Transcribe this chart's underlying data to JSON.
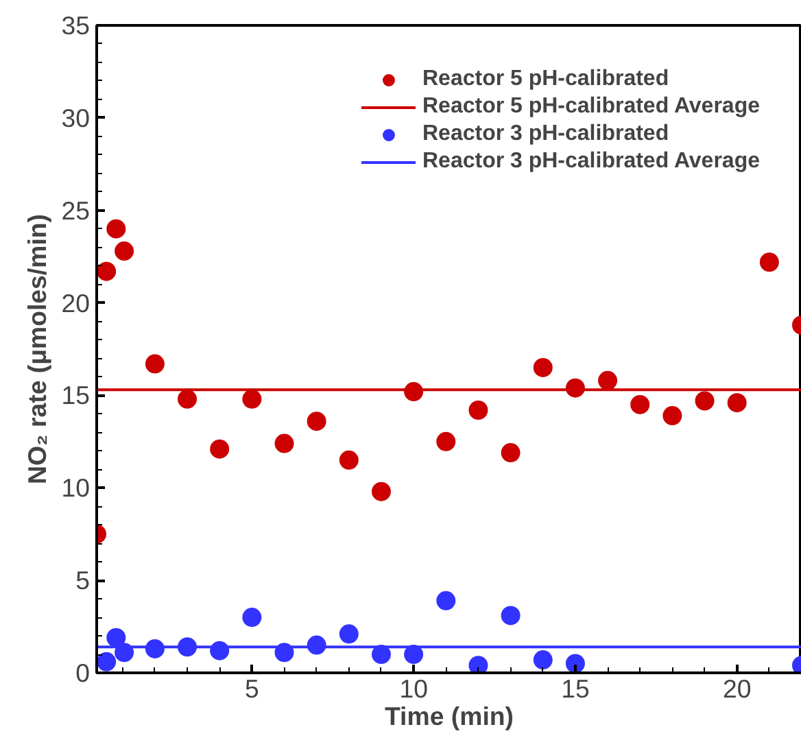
{
  "chart_data": {
    "type": "scatter",
    "xlabel": "Time (min)",
    "ylabel": "NO₂ rate (μmoles/min)",
    "xlim": [
      0.2,
      22
    ],
    "ylim": [
      0,
      35
    ],
    "xticks": [
      5,
      10,
      15,
      20
    ],
    "yticks": [
      0,
      5,
      10,
      15,
      20,
      25,
      30,
      35
    ],
    "grid": false,
    "legend": "top right",
    "marker": "circle",
    "series": [
      {
        "name": "Reactor 5 pH-calibrated",
        "color": "#cc0000",
        "x": [
          0.2,
          0.5,
          0.8,
          1.05,
          2,
          3,
          4,
          5,
          6,
          7,
          8,
          9,
          10,
          11,
          12,
          13,
          14,
          15,
          16,
          17,
          18,
          19,
          20,
          21,
          22
        ],
        "values": [
          7.5,
          21.7,
          24.0,
          22.8,
          16.7,
          14.8,
          12.1,
          14.8,
          12.4,
          13.6,
          11.5,
          9.8,
          15.2,
          12.5,
          14.2,
          11.9,
          16.5,
          15.4,
          15.8,
          14.5,
          13.9,
          14.7,
          14.6,
          22.2,
          18.8
        ]
      },
      {
        "name": "Reactor 5 pH-calibrated Average",
        "type": "line",
        "marker": "none",
        "color": "#cc0000",
        "x": [
          0.2,
          22
        ],
        "values": [
          15.3,
          15.3
        ]
      },
      {
        "name": "Reactor 3 pH-calibrated",
        "color": "#3333ff",
        "x": [
          0.5,
          0.8,
          1.05,
          2,
          3,
          4,
          5,
          6,
          7,
          8,
          9,
          10,
          11,
          12,
          13,
          14,
          15,
          22
        ],
        "values": [
          0.6,
          1.9,
          1.1,
          1.3,
          1.4,
          1.2,
          3.0,
          1.1,
          1.5,
          2.1,
          1.0,
          1.0,
          3.9,
          0.4,
          3.1,
          0.7,
          0.5,
          0.4
        ]
      },
      {
        "name": "Reactor 3 pH-calibrated Average",
        "type": "line",
        "marker": "none",
        "color": "#3333ff",
        "x": [
          0.2,
          22
        ],
        "values": [
          1.4,
          1.4
        ]
      }
    ]
  }
}
